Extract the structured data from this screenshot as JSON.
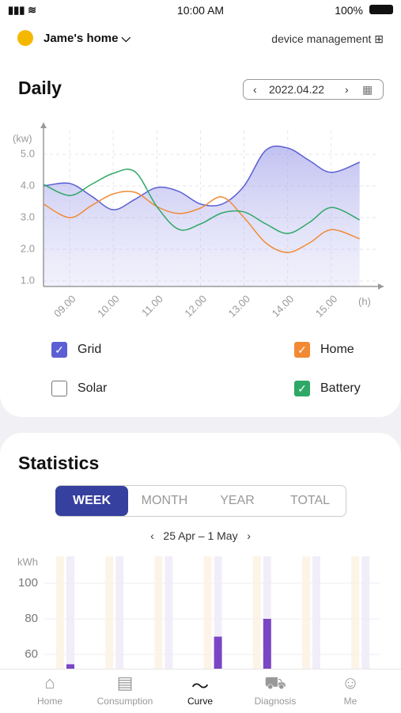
{
  "status_bar": {
    "time": "10:00 AM",
    "battery": "100%"
  },
  "header": {
    "home_name": "Jame's home",
    "device_management": "device management"
  },
  "daily": {
    "title": "Daily",
    "date": "2022.04.22"
  },
  "statistics": {
    "title": "Statistics",
    "tabs": [
      "WEEK",
      "MONTH",
      "YEAR",
      "TOTAL"
    ],
    "active_tab": 0,
    "range": "25 Apr – 1 May"
  },
  "nav": {
    "items": [
      "Home",
      "Consumption",
      "Curve",
      "Diagnosis",
      "Me"
    ],
    "active": 2
  },
  "chart_data": [
    {
      "type": "line",
      "y_label": "(kw)",
      "x_label": "(h)",
      "x": [
        8.4,
        9,
        9.5,
        10,
        10.5,
        11,
        11.5,
        12,
        12.5,
        13,
        13.5,
        14,
        14.5,
        15,
        15.65
      ],
      "xlim": [
        8.4,
        16.2
      ],
      "xticks": [
        {
          "value": 9,
          "label": "09.00"
        },
        {
          "value": 10,
          "label": "10.00"
        },
        {
          "value": 11,
          "label": "11.00"
        },
        {
          "value": 12,
          "label": "12.00"
        },
        {
          "value": 13,
          "label": "13.00"
        },
        {
          "value": 14,
          "label": "14.00"
        },
        {
          "value": 15,
          "label": "15.00"
        }
      ],
      "ylim": [
        0.825,
        6
      ],
      "yticks": [
        {
          "value": 1,
          "label": "1.0"
        },
        {
          "value": 2,
          "label": "2.0"
        },
        {
          "value": 3,
          "label": "3.0"
        },
        {
          "value": 4,
          "label": "4.0"
        },
        {
          "value": 5,
          "label": "5.0"
        }
      ],
      "grid": true,
      "series": [
        {
          "name": "Grid",
          "color": "#5b5fd3",
          "checked": true,
          "filled": true,
          "values": [
            4.0,
            4.08,
            3.68,
            3.25,
            3.58,
            3.95,
            3.83,
            3.43,
            3.43,
            4.0,
            5.13,
            5.2,
            4.8,
            4.43,
            4.75
          ]
        },
        {
          "name": "Home",
          "color": "#f28a35",
          "checked": true,
          "values": [
            3.43,
            3.0,
            3.38,
            3.75,
            3.8,
            3.35,
            3.13,
            3.3,
            3.65,
            3.0,
            2.2,
            1.9,
            2.2,
            2.62,
            2.33
          ]
        },
        {
          "name": "Solar",
          "color": "#888888",
          "checked": false
        },
        {
          "name": "Battery",
          "color": "#2fa866",
          "checked": true,
          "values": [
            4.05,
            3.7,
            4.05,
            4.4,
            4.45,
            3.35,
            2.63,
            2.8,
            3.15,
            3.18,
            2.8,
            2.5,
            2.85,
            3.32,
            2.93
          ]
        }
      ]
    },
    {
      "type": "bar",
      "y_label": "kWh",
      "color": "#7b45c4",
      "values": [
        54.5,
        null,
        null,
        70,
        80,
        null,
        null
      ],
      "ylim": [
        40,
        110
      ],
      "yticks": [
        60,
        80,
        100
      ],
      "grid": true
    }
  ]
}
